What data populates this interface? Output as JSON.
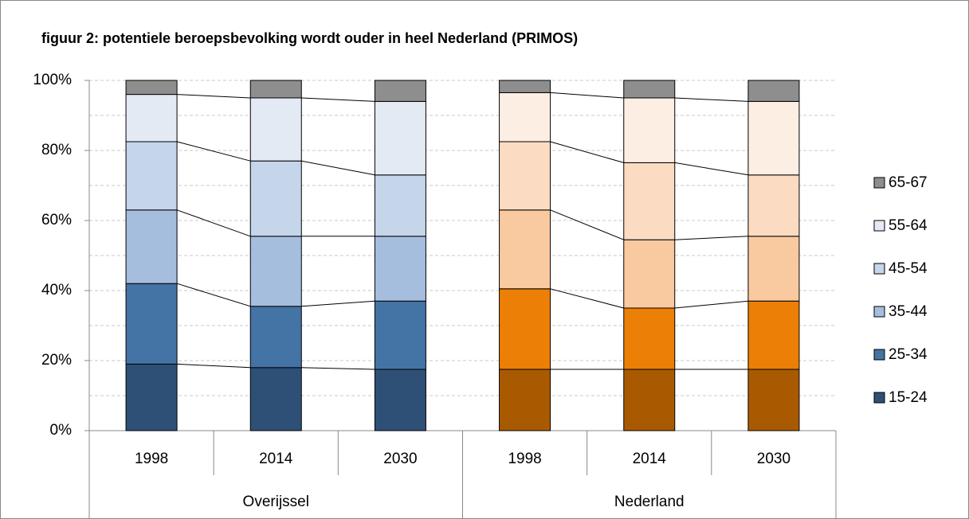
{
  "chart_data": {
    "type": "stacked_bar_100",
    "title": "figuur 2: potentiele beroepsbevolking wordt ouder in heel Nederland (PRIMOS)",
    "groups": [
      {
        "name": "Overijssel",
        "categories": [
          "1998",
          "2014",
          "2030"
        ]
      },
      {
        "name": "Nederland",
        "categories": [
          "1998",
          "2014",
          "2030"
        ]
      }
    ],
    "series": [
      {
        "name": "15-24",
        "colors": [
          "#2f5076",
          "#a95a00"
        ],
        "values": [
          19,
          18,
          17.5,
          17.5,
          17.5,
          17.5
        ]
      },
      {
        "name": "25-34",
        "colors": [
          "#4473a5",
          "#ec7f05"
        ],
        "values": [
          23,
          17.5,
          19.5,
          23,
          17.5,
          19.5
        ]
      },
      {
        "name": "35-44",
        "colors": [
          "#a6bede",
          "#f9c9a0"
        ],
        "values": [
          21,
          20,
          18.5,
          22.5,
          19.5,
          18.5
        ]
      },
      {
        "name": "45-54",
        "colors": [
          "#c5d5ea",
          "#fbdcc2"
        ],
        "values": [
          19.5,
          21.5,
          17.5,
          19.5,
          22,
          17.5
        ]
      },
      {
        "name": "55-64",
        "colors": [
          "#e4eaf4",
          "#fdeee3"
        ],
        "values": [
          13.5,
          18,
          21,
          14,
          18.5,
          21
        ]
      },
      {
        "name": "65-67",
        "colors": [
          "#8e8e8e",
          "#8e8e8e"
        ],
        "values": [
          4,
          5,
          6,
          3.5,
          5,
          6
        ]
      }
    ],
    "ylim": [
      0,
      100
    ],
    "yticks": [
      {
        "value": 0,
        "label": "0%"
      },
      {
        "value": 20,
        "label": "20%"
      },
      {
        "value": 40,
        "label": "40%"
      },
      {
        "value": 60,
        "label": "60%"
      },
      {
        "value": 80,
        "label": "80%"
      },
      {
        "value": 100,
        "label": "100%"
      }
    ],
    "yminorticks": [
      10,
      30,
      50,
      70,
      90
    ],
    "grid": true,
    "legend": "right"
  }
}
